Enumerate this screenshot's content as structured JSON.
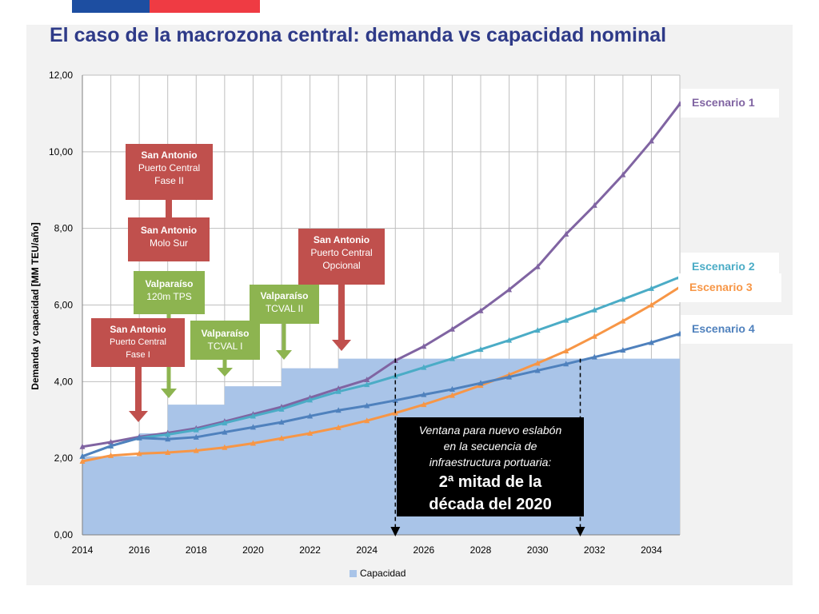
{
  "title": "El caso de la macrozona central: demanda vs capacidad nominal",
  "colors": {
    "title": "#2e3a88",
    "flag_blue": "#1d4ea1",
    "flag_red": "#ef3b43",
    "capacity": "#a9c4e8",
    "escenario1": "#8064a2",
    "escenario2": "#4bacc6",
    "escenario3": "#f79646",
    "escenario4": "#4f81bd",
    "red_box": "#c0504d",
    "green_box": "#8db450"
  },
  "chart_data": {
    "type": "line",
    "xlim": [
      2014,
      2035
    ],
    "ylim": [
      0,
      12
    ],
    "ylabel": "Demanda y capacidad [MM TEU/año]",
    "xlabel": "",
    "x_ticks": [
      "2014",
      "2016",
      "2018",
      "2020",
      "2022",
      "2024",
      "2026",
      "2028",
      "2030",
      "2032",
      "2034"
    ],
    "y_ticks": [
      "0,00",
      "2,00",
      "4,00",
      "6,00",
      "8,00",
      "10,00",
      "12,00"
    ],
    "grid": true,
    "x": [
      2014,
      2015,
      2016,
      2017,
      2018,
      2019,
      2020,
      2021,
      2022,
      2023,
      2024,
      2025,
      2026,
      2027,
      2028,
      2029,
      2030,
      2031,
      2032,
      2033,
      2034,
      2035
    ],
    "capacity": {
      "name": "Capacidad",
      "steps": [
        {
          "from": 2014,
          "to": 2016,
          "value": 2.05
        },
        {
          "from": 2016,
          "to": 2017,
          "value": 2.65
        },
        {
          "from": 2017,
          "to": 2019,
          "value": 3.4
        },
        {
          "from": 2019,
          "to": 2021,
          "value": 3.88
        },
        {
          "from": 2021,
          "to": 2023,
          "value": 4.35
        },
        {
          "from": 2023,
          "to": 2035,
          "value": 4.6
        }
      ]
    },
    "series": [
      {
        "name": "Escenario 1",
        "key": "escenario1",
        "values": [
          2.3,
          2.42,
          2.56,
          2.66,
          2.78,
          2.96,
          3.15,
          3.34,
          3.58,
          3.82,
          4.05,
          4.55,
          4.92,
          5.37,
          5.85,
          6.4,
          7.0,
          7.85,
          8.6,
          9.4,
          10.28,
          11.25
        ]
      },
      {
        "name": "Escenario 2",
        "key": "escenario2",
        "values": [
          2.05,
          2.32,
          2.53,
          2.62,
          2.74,
          2.92,
          3.1,
          3.28,
          3.52,
          3.74,
          3.92,
          4.14,
          4.37,
          4.6,
          4.84,
          5.08,
          5.34,
          5.6,
          5.87,
          6.15,
          6.43,
          6.73
        ]
      },
      {
        "name": "Escenario 3",
        "key": "escenario3",
        "values": [
          1.92,
          2.07,
          2.12,
          2.15,
          2.2,
          2.28,
          2.39,
          2.52,
          2.65,
          2.8,
          2.98,
          3.18,
          3.4,
          3.64,
          3.9,
          4.18,
          4.48,
          4.8,
          5.18,
          5.58,
          6.0,
          6.47
        ]
      },
      {
        "name": "Escenario 4",
        "key": "escenario4",
        "values": [
          2.05,
          2.32,
          2.53,
          2.5,
          2.55,
          2.68,
          2.81,
          2.94,
          3.1,
          3.25,
          3.37,
          3.51,
          3.66,
          3.8,
          3.96,
          4.12,
          4.29,
          4.46,
          4.64,
          4.82,
          5.02,
          5.25
        ]
      }
    ],
    "legend": "Capacidad",
    "window_markers": [
      2025,
      2031.5
    ]
  },
  "annotations": {
    "sa_pc_fase2": {
      "line1": "San Antonio",
      "line2": "Puerto Central",
      "line3": "Fase II"
    },
    "sa_molo_sur": {
      "line1": "San Antonio",
      "line2": "Molo Sur"
    },
    "sa_pc_opcional": {
      "line1": "San Antonio",
      "line2": "Puerto Central",
      "line3": "Opcional"
    },
    "valp_120m": {
      "line1": "Valparaíso",
      "line2": "120m TPS"
    },
    "valp_tcval2": {
      "line1": "Valparaíso",
      "line2": "TCVAL II"
    },
    "sa_pc_fase1": {
      "line1": "San Antonio",
      "line2": "Puerto Central",
      "line3": "Fase I"
    },
    "valp_tcval1": {
      "line1": "Valparaíso",
      "line2": "TCVAL I"
    }
  },
  "window_box": {
    "line1": "Ventana para nuevo eslabón",
    "line2": "en la secuencia de",
    "line3": "infraestructura portuaria:",
    "line4": "2ª mitad de la",
    "line5": "década del 2020"
  },
  "scenario_labels": {
    "s1": "Escenario 1",
    "s2": "Escenario 2",
    "s3": "Escenario 3",
    "s4": "Escenario 4"
  },
  "legend_label": "Capacidad"
}
